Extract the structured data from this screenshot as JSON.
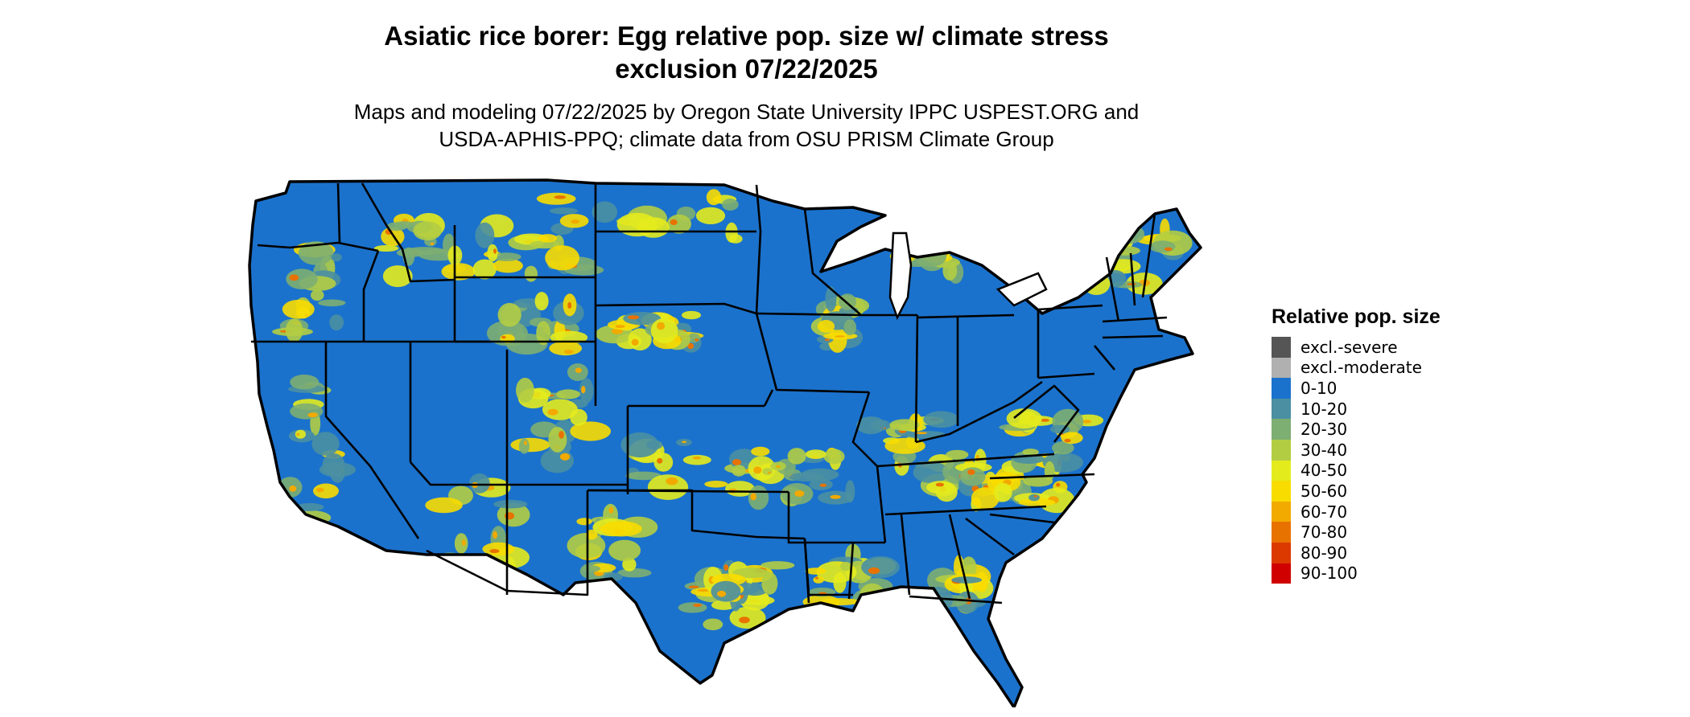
{
  "title_line1": "Asiatic rice borer: Egg relative pop. size w/ climate stress",
  "title_line2": "exclusion 07/22/2025",
  "subtitle_line1": "Maps and modeling 07/22/2025 by Oregon State University IPPC USPEST.ORG and",
  "subtitle_line2": "USDA-APHIS-PPQ; climate data from OSU PRISM Climate Group",
  "legend": {
    "title": "Relative pop. size",
    "items": [
      {
        "label": "excl.-severe",
        "color": "#555555"
      },
      {
        "label": "excl.-moderate",
        "color": "#b0b0b0"
      },
      {
        "label": "0-10",
        "color": "#1b72cc"
      },
      {
        "label": "10-20",
        "color": "#4a8fa2"
      },
      {
        "label": "20-30",
        "color": "#7dae72"
      },
      {
        "label": "30-40",
        "color": "#b3cd43"
      },
      {
        "label": "40-50",
        "color": "#e4eb1d"
      },
      {
        "label": "50-60",
        "color": "#f8dc00"
      },
      {
        "label": "60-70",
        "color": "#f2a900"
      },
      {
        "label": "70-80",
        "color": "#e87200"
      },
      {
        "label": "80-90",
        "color": "#dc3900"
      },
      {
        "label": "90-100",
        "color": "#d00000"
      }
    ]
  },
  "map": {
    "region": "Contiguous United States",
    "base_color": "#1b72cc",
    "border_color": "#000000"
  }
}
